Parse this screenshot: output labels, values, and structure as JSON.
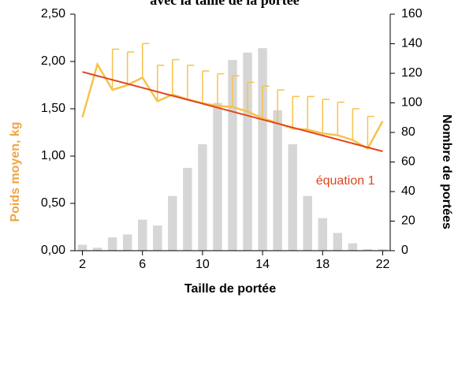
{
  "chart_data": {
    "type": "combo",
    "title": "avec la taille de la portée",
    "x_label": "Taille de portée",
    "y_label": "Poids moyen, kg",
    "y2_label": "Nombre de portées",
    "x": [
      2,
      3,
      4,
      5,
      6,
      7,
      8,
      9,
      10,
      11,
      12,
      13,
      14,
      15,
      16,
      17,
      18,
      19,
      20,
      21,
      22
    ],
    "xlim": [
      1.5,
      22.5
    ],
    "xticks": [
      2,
      6,
      10,
      14,
      18,
      22
    ],
    "ylim": [
      0,
      2.5
    ],
    "yticks": [
      {
        "value": 0,
        "label": "0,00"
      },
      {
        "value": 0.5,
        "label": "0,50"
      },
      {
        "value": 1,
        "label": "1,00"
      },
      {
        "value": 1.5,
        "label": "1,50"
      },
      {
        "value": 2,
        "label": "2,00"
      },
      {
        "value": 2.5,
        "label": "2,50"
      }
    ],
    "y2lim": [
      0,
      160
    ],
    "y2ticks": [
      0,
      20,
      40,
      60,
      80,
      100,
      120,
      140,
      160
    ],
    "series": [
      {
        "type": "bar",
        "axis": "y2",
        "color": "#d6d6d6",
        "values": [
          4,
          2,
          9,
          11,
          21,
          17,
          37,
          56,
          72,
          100,
          129,
          134,
          137,
          95,
          72,
          37,
          22,
          12,
          5,
          1,
          1
        ]
      },
      {
        "type": "line",
        "color": "#f7c24a",
        "values": [
          1.41,
          1.97,
          1.7,
          1.75,
          1.83,
          1.58,
          1.65,
          1.6,
          1.56,
          1.53,
          1.52,
          1.47,
          1.4,
          1.35,
          1.29,
          1.28,
          1.24,
          1.22,
          1.17,
          1.08,
          1.37
        ],
        "errors": [
          null,
          null,
          0.43,
          0.35,
          0.36,
          0.38,
          0.37,
          0.36,
          0.34,
          0.34,
          0.33,
          0.31,
          0.34,
          0.35,
          0.34,
          0.35,
          0.36,
          0.35,
          0.33,
          0.34,
          null
        ]
      },
      {
        "type": "line",
        "color": "#e0451b",
        "x": [
          2,
          22
        ],
        "values": [
          1.89,
          1.05
        ],
        "label": "équation 1"
      }
    ]
  }
}
